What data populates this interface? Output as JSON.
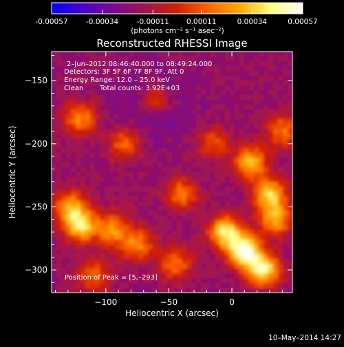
{
  "colorbar": {
    "ticks": [
      "-0.00057",
      "-0.00034",
      "-0.00011",
      "0.00011",
      "0.00034",
      "0.00057"
    ],
    "tick_values": [
      -0.00057,
      -0.00034,
      -0.00011,
      0.00011,
      0.00034,
      0.00057
    ],
    "unit_label": "(photons cm⁻² s⁻¹ asec⁻²)",
    "colors": [
      "#0000ff",
      "#4b00c8",
      "#7a0a8c",
      "#a01450",
      "#d22000",
      "#ff6400",
      "#ffaa00",
      "#ffff80",
      "#ffffff"
    ]
  },
  "chart_data": {
    "type": "heatmap",
    "title": "Reconstructed RHESSI Image",
    "xlabel": "Heliocentric X (arcsec)",
    "ylabel": "Heliocentric Y (arcsec)",
    "xlim": [
      -143,
      48
    ],
    "ylim": [
      -318,
      -127
    ],
    "xticks": [
      -100,
      -50,
      0
    ],
    "xtick_labels": [
      "−100",
      "−50",
      "0"
    ],
    "yticks": [
      -150,
      -200,
      -250,
      -300
    ],
    "ytick_labels": [
      "−150",
      "−200",
      "−250",
      "−300"
    ],
    "annotations": {
      "time_range": "2–Jun–2012 08:46:40.000 to 08:49:24.000",
      "detectors": "Detectors: 3F 5F 6F 7F 8F 9F, Att 0",
      "energy": "Energy Range: 12.0 – 25.0 keV",
      "algorithm": "Clean",
      "counts": "Total counts: 3.92E+03",
      "peak": "Position of Peak = [5,–293]"
    },
    "peak": [
      5,
      -293
    ],
    "bright_sources": [
      {
        "x": 10,
        "y": -285,
        "level": 1.0
      },
      {
        "x": -5,
        "y": -270,
        "level": 0.85
      },
      {
        "x": 25,
        "y": -300,
        "level": 0.9
      },
      {
        "x": 30,
        "y": -240,
        "level": 0.75
      },
      {
        "x": 15,
        "y": -215,
        "level": 0.7
      },
      {
        "x": 35,
        "y": -260,
        "level": 0.65
      },
      {
        "x": -120,
        "y": -265,
        "level": 0.8
      },
      {
        "x": -128,
        "y": -250,
        "level": 0.6
      },
      {
        "x": -95,
        "y": -268,
        "level": 0.6
      },
      {
        "x": -75,
        "y": -280,
        "level": 0.55
      },
      {
        "x": -120,
        "y": -180,
        "level": 0.55
      },
      {
        "x": -85,
        "y": -200,
        "level": 0.5
      },
      {
        "x": -60,
        "y": -165,
        "level": 0.45
      },
      {
        "x": -40,
        "y": -240,
        "level": 0.5
      },
      {
        "x": -45,
        "y": -295,
        "level": 0.5
      },
      {
        "x": -110,
        "y": -305,
        "level": 0.45
      },
      {
        "x": 40,
        "y": -190,
        "level": 0.5
      },
      {
        "x": -15,
        "y": -200,
        "level": 0.4
      }
    ]
  },
  "footer": {
    "date": "10–May–2014 14:27"
  }
}
